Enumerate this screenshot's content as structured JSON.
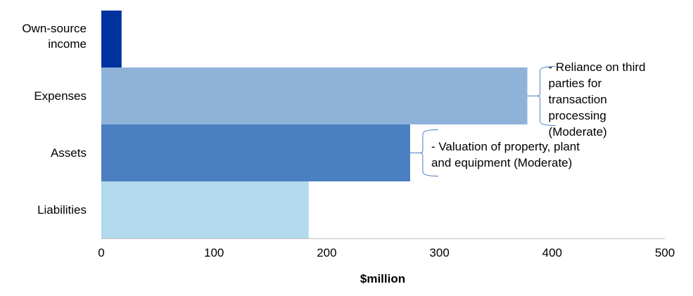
{
  "chart_data": {
    "type": "bar",
    "orientation": "horizontal",
    "categories": [
      "Own-source\nincome",
      "Expenses",
      "Assets",
      "Liabilities"
    ],
    "values": [
      18,
      378,
      274,
      184
    ],
    "colors": [
      "#0033a0",
      "#8fb2d9",
      "#4a7fc1",
      "#b3d9ec"
    ],
    "xlabel": "$million",
    "ylabel": "",
    "xlim": [
      0,
      500
    ],
    "xticks": [
      0,
      100,
      200,
      300,
      400,
      500
    ],
    "grid": false,
    "annotations": [
      {
        "category": "Expenses",
        "text": " - Reliance on third\nparties for\ntransaction\nprocessing\n(Moderate)"
      },
      {
        "category": "Assets",
        "text": " - Valuation of property, plant\nand equipment (Moderate)"
      }
    ]
  }
}
